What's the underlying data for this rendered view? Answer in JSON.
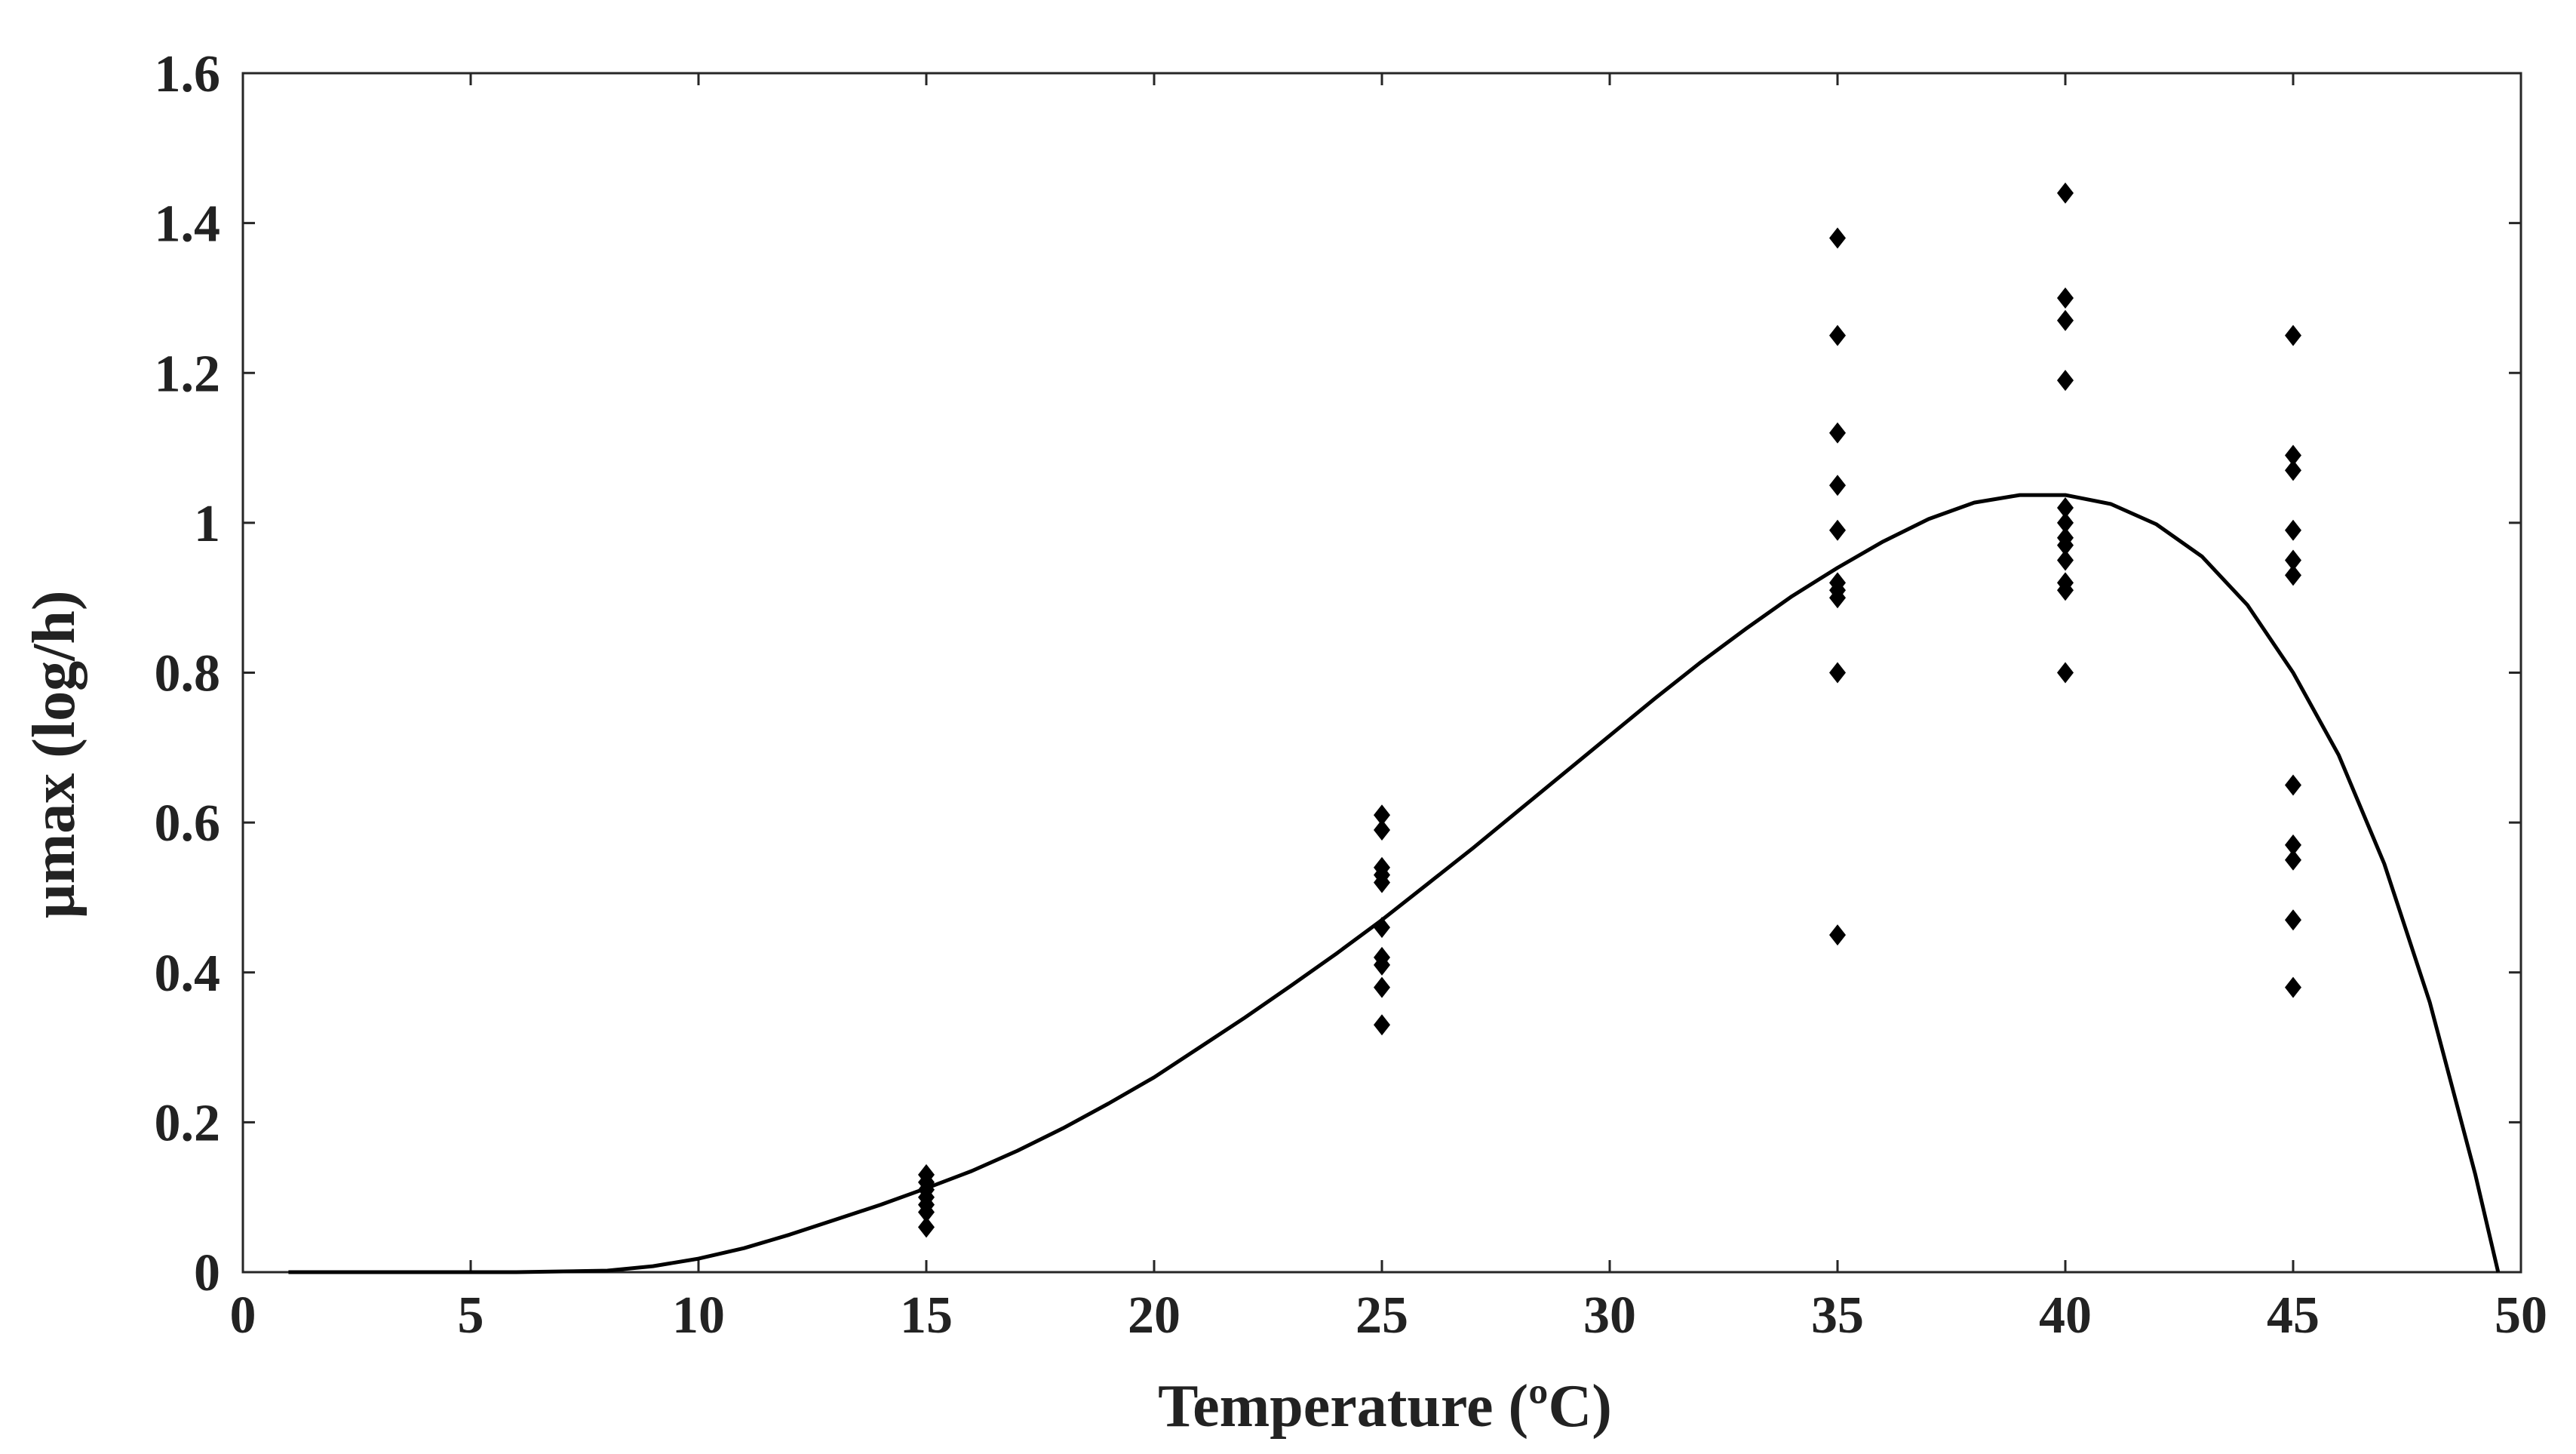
{
  "chart_data": {
    "type": "scatter",
    "xlabel": "Temperature (ºC)",
    "ylabel": "µmax (log/h)",
    "xlim": [
      0,
      50
    ],
    "ylim": [
      0,
      1.6
    ],
    "xticks": [
      0,
      5,
      10,
      15,
      20,
      25,
      30,
      35,
      40,
      45,
      50
    ],
    "yticks": [
      0,
      0.2,
      0.4,
      0.6,
      0.8,
      1,
      1.2,
      1.4,
      1.6
    ],
    "xtick_labels": [
      "0",
      "5",
      "10",
      "15",
      "20",
      "25",
      "30",
      "35",
      "40",
      "45",
      "50"
    ],
    "ytick_labels": [
      "0",
      "0.2",
      "0.4",
      "0.6",
      "0.8",
      "1",
      "1.2",
      "1.4",
      "1.6"
    ],
    "grid": false,
    "series": [
      {
        "kind": "scatter",
        "marker": "diamond",
        "color": "#000000",
        "points": [
          [
            15,
            0.13
          ],
          [
            15,
            0.12
          ],
          [
            15,
            0.11
          ],
          [
            15,
            0.1
          ],
          [
            15,
            0.09
          ],
          [
            15,
            0.08
          ],
          [
            15,
            0.06
          ],
          [
            25,
            0.61
          ],
          [
            25,
            0.59
          ],
          [
            25,
            0.54
          ],
          [
            25,
            0.53
          ],
          [
            25,
            0.52
          ],
          [
            25,
            0.46
          ],
          [
            25,
            0.42
          ],
          [
            25,
            0.41
          ],
          [
            25,
            0.38
          ],
          [
            25,
            0.33
          ],
          [
            35,
            1.38
          ],
          [
            35,
            1.25
          ],
          [
            35,
            1.12
          ],
          [
            35,
            1.05
          ],
          [
            35,
            0.99
          ],
          [
            35,
            0.92
          ],
          [
            35,
            0.91
          ],
          [
            35,
            0.9
          ],
          [
            35,
            0.8
          ],
          [
            35,
            0.45
          ],
          [
            40,
            1.44
          ],
          [
            40,
            1.3
          ],
          [
            40,
            1.27
          ],
          [
            40,
            1.19
          ],
          [
            40,
            1.02
          ],
          [
            40,
            1.0
          ],
          [
            40,
            0.98
          ],
          [
            40,
            0.97
          ],
          [
            40,
            0.95
          ],
          [
            40,
            0.92
          ],
          [
            40,
            0.91
          ],
          [
            40,
            0.8
          ],
          [
            45,
            1.25
          ],
          [
            45,
            1.09
          ],
          [
            45,
            1.07
          ],
          [
            45,
            0.99
          ],
          [
            45,
            0.95
          ],
          [
            45,
            0.93
          ],
          [
            45,
            0.65
          ],
          [
            45,
            0.57
          ],
          [
            45,
            0.55
          ],
          [
            45,
            0.47
          ],
          [
            45,
            0.38
          ]
        ]
      },
      {
        "kind": "line",
        "color": "#000000",
        "points": [
          [
            1,
            0
          ],
          [
            6,
            0
          ],
          [
            8,
            0.002
          ],
          [
            9,
            0.008
          ],
          [
            10,
            0.018
          ],
          [
            11,
            0.032
          ],
          [
            12,
            0.05
          ],
          [
            13,
            0.07
          ],
          [
            14,
            0.09
          ],
          [
            15,
            0.112
          ],
          [
            16,
            0.135
          ],
          [
            17,
            0.162
          ],
          [
            18,
            0.192
          ],
          [
            19,
            0.225
          ],
          [
            20,
            0.26
          ],
          [
            21,
            0.3
          ],
          [
            22,
            0.34
          ],
          [
            23,
            0.382
          ],
          [
            24,
            0.425
          ],
          [
            25,
            0.47
          ],
          [
            26,
            0.518
          ],
          [
            27,
            0.566
          ],
          [
            28,
            0.616
          ],
          [
            29,
            0.666
          ],
          [
            30,
            0.716
          ],
          [
            31,
            0.766
          ],
          [
            32,
            0.814
          ],
          [
            33,
            0.859
          ],
          [
            34,
            0.902
          ],
          [
            35,
            0.94
          ],
          [
            36,
            0.975
          ],
          [
            37,
            1.005
          ],
          [
            38,
            1.027
          ],
          [
            39,
            1.037
          ],
          [
            40,
            1.037
          ],
          [
            41,
            1.025
          ],
          [
            42,
            0.998
          ],
          [
            43,
            0.955
          ],
          [
            44,
            0.89
          ],
          [
            45,
            0.8
          ],
          [
            46,
            0.69
          ],
          [
            47,
            0.545
          ],
          [
            48,
            0.36
          ],
          [
            49,
            0.13
          ],
          [
            49.5,
            0
          ]
        ]
      }
    ]
  }
}
